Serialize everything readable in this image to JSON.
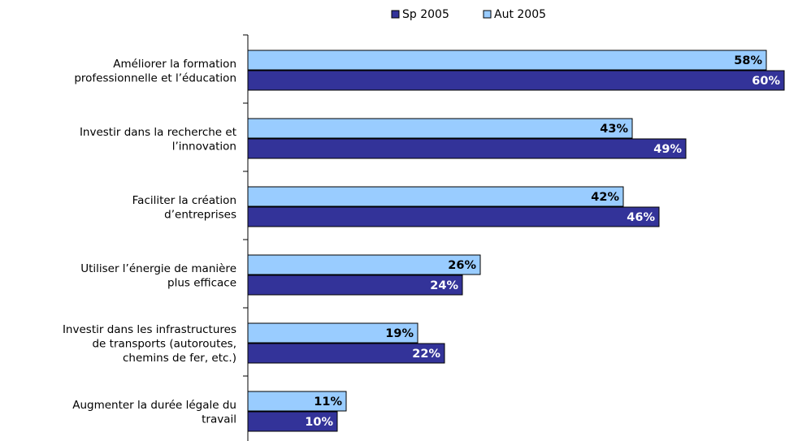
{
  "chart_data": {
    "type": "bar",
    "orientation": "horizontal",
    "categories": [
      [
        "Améliorer la formation",
        "professionnelle et l’éducation"
      ],
      [
        "Investir dans la recherche et",
        "l’innovation"
      ],
      [
        "Faciliter la création",
        "d’entreprises"
      ],
      [
        "Utiliser l’énergie de manière",
        "plus efficace"
      ],
      [
        "Investir dans les infrastructures",
        "de transports (autoroutes,",
        "chemins de fer, etc.)"
      ],
      [
        "Augmenter la durée légale du",
        "travail"
      ]
    ],
    "series": [
      {
        "name": "Aut 2005",
        "color": "#99ccff",
        "values": [
          58,
          43,
          42,
          26,
          19,
          11
        ],
        "labels": [
          "58%",
          "43%",
          "42%",
          "26%",
          "19%",
          "11%"
        ]
      },
      {
        "name": "Sp 2005",
        "color": "#333399",
        "values": [
          60,
          49,
          46,
          24,
          22,
          10
        ],
        "labels": [
          "60%",
          "49%",
          "46%",
          "24%",
          "22%",
          "10%"
        ]
      }
    ],
    "legend": {
      "position": "top",
      "order": [
        "Sp 2005",
        "Aut 2005"
      ]
    },
    "xlim": [
      0,
      60
    ],
    "grid": false
  }
}
